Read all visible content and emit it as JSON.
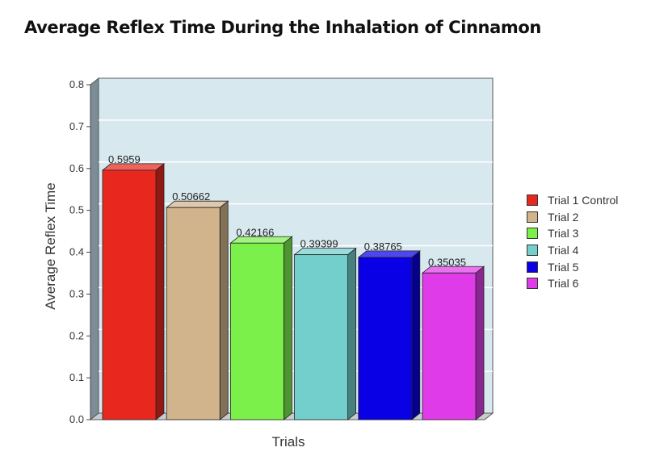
{
  "chart_data": {
    "type": "bar",
    "title": "Average Reflex Time During the Inhalation of Cinnamon",
    "xlabel": "Trials",
    "ylabel": "Average Reflex Time",
    "ylim": [
      0,
      0.8
    ],
    "yticks": [
      "0.0",
      "0.1",
      "0.2",
      "0.3",
      "0.4",
      "0.5",
      "0.6",
      "0.7",
      "0.8"
    ],
    "grid": true,
    "legend_position": "right",
    "plot_background": "#d8e8ef",
    "series": [
      {
        "name": "Trial 1 Control",
        "value": 0.5959,
        "label": "0.5959",
        "color": "#e8281e"
      },
      {
        "name": "Trial 2",
        "value": 0.50662,
        "label": "0.50662",
        "color": "#d2b48c"
      },
      {
        "name": "Trial 3",
        "value": 0.42166,
        "label": "0.42166",
        "color": "#7cf04a"
      },
      {
        "name": "Trial 4",
        "value": 0.39399,
        "label": "0.39399",
        "color": "#72cfcc"
      },
      {
        "name": "Trial 5",
        "value": 0.38765,
        "label": "0.38765",
        "color": "#0a00e6"
      },
      {
        "name": "Trial 6",
        "value": 0.35035,
        "label": "0.35035",
        "color": "#e03be8"
      }
    ]
  }
}
